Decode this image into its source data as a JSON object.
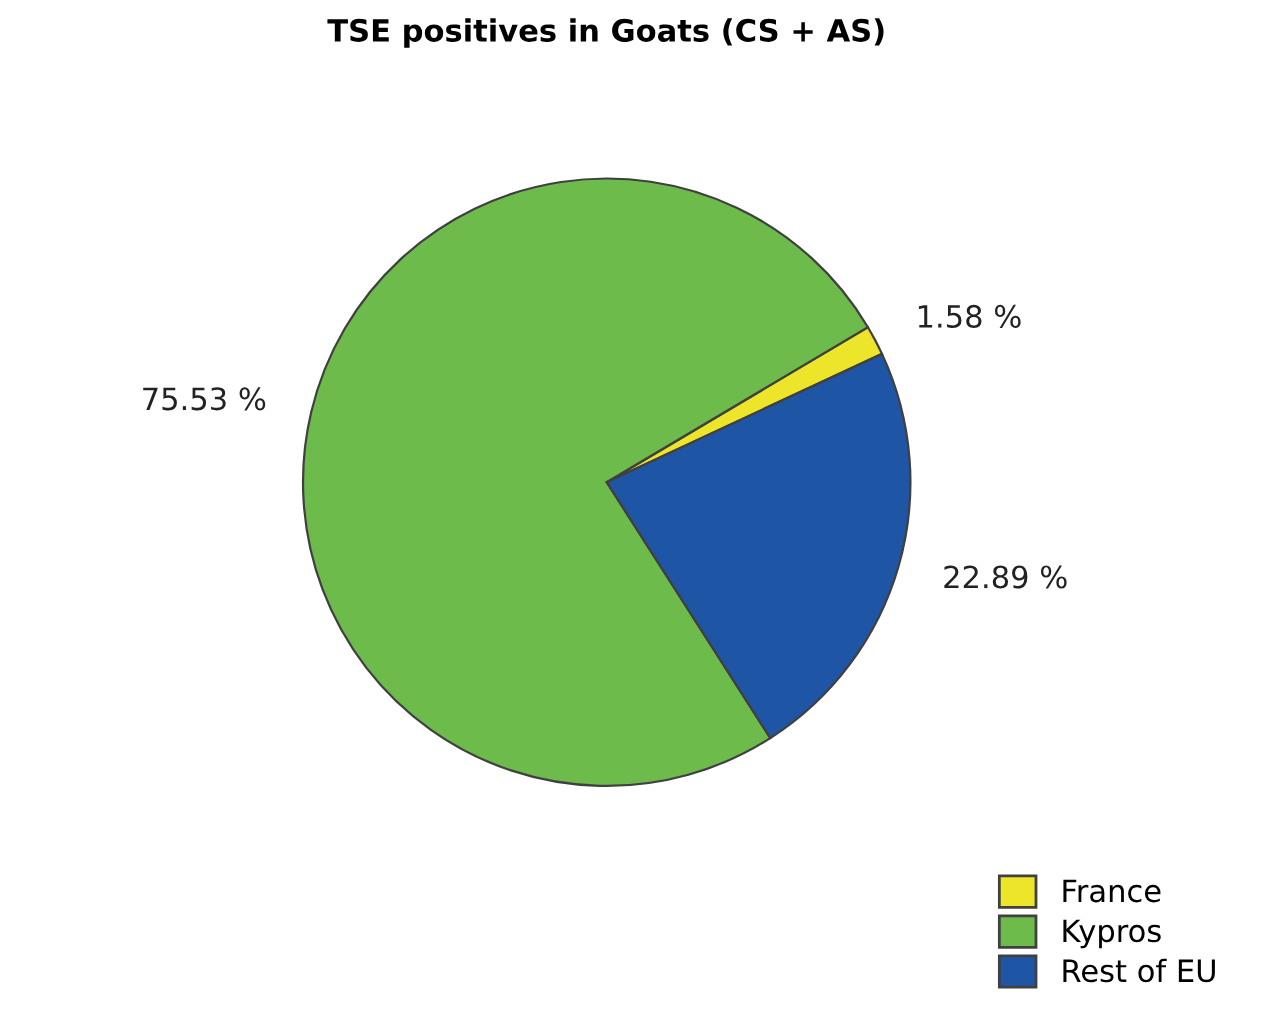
{
  "chart_data": {
    "type": "pie",
    "title": "TSE positives in Goats (CS + AS)",
    "categories": [
      "France",
      "Kypros",
      "Rest of EU"
    ],
    "values": [
      1.58,
      75.53,
      22.89
    ],
    "value_labels": [
      "1.58 %",
      "75.53 %",
      "22.89 %"
    ],
    "colors": [
      "#ece52a",
      "#6cbb4b",
      "#1f55a5"
    ],
    "legend": "bottom right"
  }
}
